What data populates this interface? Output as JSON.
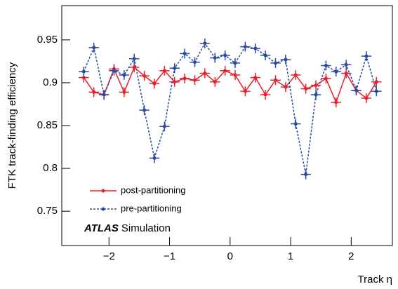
{
  "chart_data": {
    "type": "line",
    "x_label": "Track η",
    "y_label": "FTK track-finding efficiency",
    "annotation": {
      "bold": "ATLAS",
      "normal": "Simulation"
    },
    "legend": "lower left",
    "x": [
      -2.417,
      -2.25,
      -2.083,
      -1.917,
      -1.75,
      -1.583,
      -1.417,
      -1.25,
      -1.083,
      -0.917,
      -0.75,
      -0.583,
      -0.417,
      -0.25,
      -0.083,
      0.083,
      0.25,
      0.417,
      0.583,
      0.75,
      0.917,
      1.083,
      1.25,
      1.417,
      1.583,
      1.75,
      1.917,
      2.083,
      2.25,
      2.417
    ],
    "series": [
      {
        "name": "post-partitioning",
        "color": "#e8202a",
        "linestyle": "solid",
        "values": [
          0.906,
          0.889,
          0.886,
          0.916,
          0.889,
          0.918,
          0.908,
          0.899,
          0.914,
          0.901,
          0.905,
          0.903,
          0.911,
          0.901,
          0.914,
          0.909,
          0.89,
          0.906,
          0.886,
          0.903,
          0.895,
          0.909,
          0.893,
          0.897,
          0.905,
          0.877,
          0.911,
          0.891,
          0.882,
          0.901
        ]
      },
      {
        "name": "pre-partitioning",
        "color": "#2b4aa0",
        "linestyle": "dashed",
        "values": [
          0.913,
          0.941,
          0.886,
          0.914,
          0.909,
          0.928,
          0.868,
          0.812,
          0.849,
          0.917,
          0.934,
          0.924,
          0.946,
          0.929,
          0.932,
          0.923,
          0.942,
          0.94,
          0.932,
          0.923,
          0.927,
          0.852,
          0.793,
          0.886,
          0.92,
          0.913,
          0.921,
          0.891,
          0.931,
          0.89
        ]
      }
    ],
    "xlim": [
      -2.78,
      2.68
    ],
    "ylim": [
      0.71,
      0.99
    ],
    "xticks": [
      {
        "value": -2,
        "label": "−2"
      },
      {
        "value": -1,
        "label": "−1"
      },
      0,
      1,
      2
    ],
    "yticks": [
      0.75,
      0.8,
      0.85,
      0.9,
      0.95
    ],
    "grid": false
  }
}
